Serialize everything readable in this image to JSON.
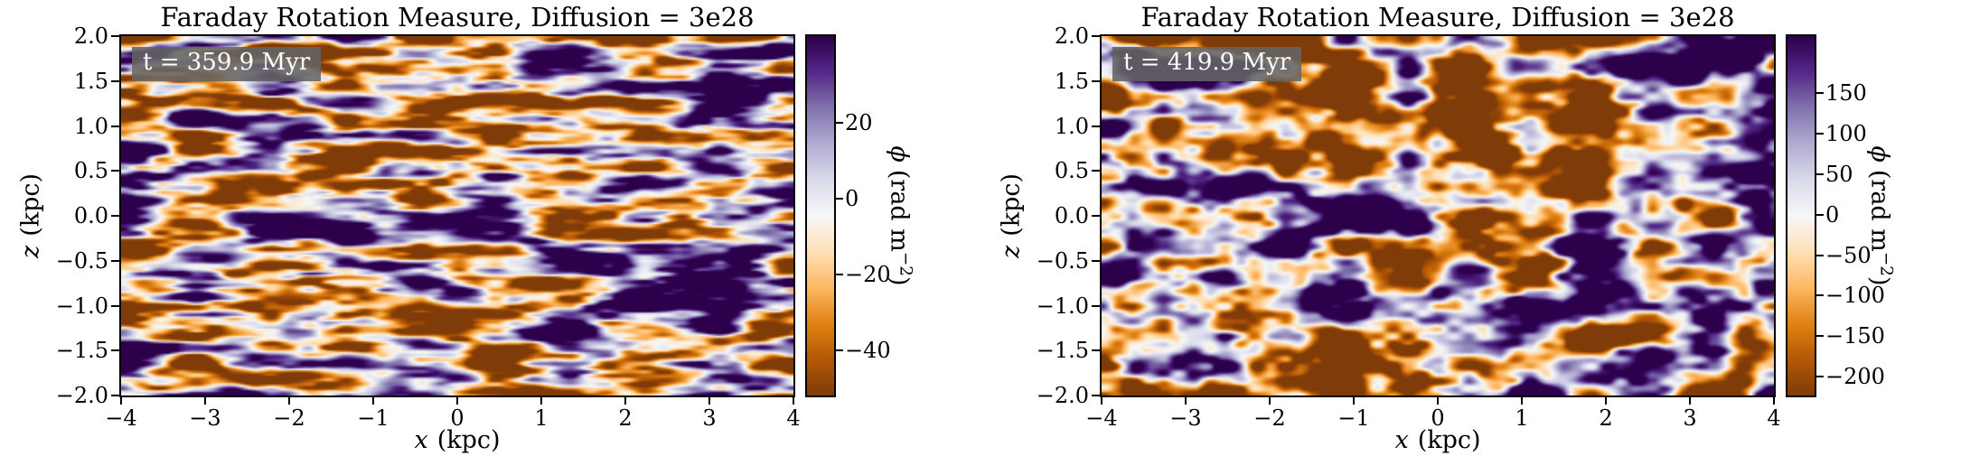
{
  "colormap_anchors": [
    "#7f3b08",
    "#b35806",
    "#e08214",
    "#fdb863",
    "#fee0b6",
    "#f7f7f7",
    "#d8daeb",
    "#b2abd2",
    "#8073ac",
    "#542788",
    "#2d004b"
  ],
  "chart_data": [
    {
      "type": "heatmap",
      "title": "Faraday Rotation Measure, Diffusion = 3e28",
      "annotation": "t = 359.9 Myr",
      "xlabel_var": "x",
      "xlabel_unit": "(kpc)",
      "ylabel_var": "z",
      "ylabel_unit": "(kpc)",
      "xlim": [
        -4,
        4
      ],
      "ylim": [
        -2,
        2
      ],
      "x_ticks": [
        "−4",
        "−3",
        "−2",
        "−1",
        "0",
        "1",
        "2",
        "3",
        "4"
      ],
      "y_ticks": [
        "2.0",
        "1.5",
        "1.0",
        "0.5",
        "0.0",
        "−0.5",
        "−1.0",
        "−1.5",
        "−2.0"
      ],
      "colormap": "PuOr",
      "field_description": "stochastic Faraday rotation measure field, thin filaments strongly elongated along x",
      "colorbar": {
        "label_var": "ϕ",
        "label_unit_prefix": "(rad m",
        "label_exp": "−2",
        "label_suffix": ")",
        "vmin": -52,
        "vmax": 43,
        "ticks": [
          20,
          0,
          -20,
          -40
        ],
        "tick_labels": [
          "20",
          "0",
          "−20",
          "−40"
        ]
      },
      "texture": {
        "seed": 11,
        "fx": 9,
        "fy": 22,
        "octaves": 3,
        "gain": 3.2,
        "bias": 0.05
      }
    },
    {
      "type": "heatmap",
      "title": "Faraday Rotation Measure, Diffusion = 3e28",
      "annotation": "t = 419.9 Myr",
      "xlabel_var": "x",
      "xlabel_unit": "(kpc)",
      "ylabel_var": "z",
      "ylabel_unit": "(kpc)",
      "xlim": [
        -4,
        4
      ],
      "ylim": [
        -2,
        2
      ],
      "x_ticks": [
        "−4",
        "−3",
        "−2",
        "−1",
        "0",
        "1",
        "2",
        "3",
        "4"
      ],
      "y_ticks": [
        "2.0",
        "1.5",
        "1.0",
        "0.5",
        "0.0",
        "−0.5",
        "−1.0",
        "−1.5",
        "−2.0"
      ],
      "colormap": "PuOr",
      "field_description": "stochastic Faraday rotation measure field, larger mottled patches, mildly elongated along x",
      "colorbar": {
        "label_var": "ϕ",
        "label_unit_prefix": "(rad m",
        "label_exp": "−2",
        "label_suffix": ")",
        "vmin": -223,
        "vmax": 220,
        "ticks": [
          150,
          100,
          50,
          0,
          -50,
          -100,
          -150,
          -200
        ],
        "tick_labels": [
          "150",
          "100",
          "50",
          "0",
          "−50",
          "−100",
          "−150",
          "−200"
        ]
      },
      "texture": {
        "seed": 47,
        "fx": 11,
        "fy": 12,
        "octaves": 3,
        "gain": 3.5,
        "bias": 0.04
      }
    }
  ]
}
